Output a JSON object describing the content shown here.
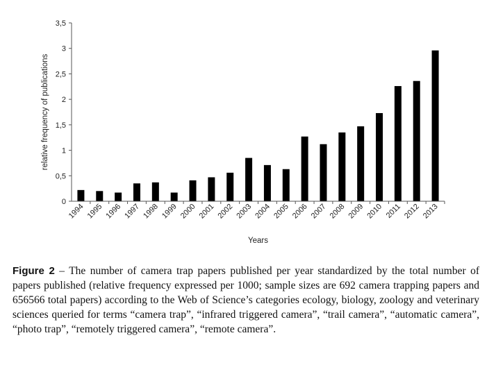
{
  "chart_data": {
    "type": "bar",
    "categories": [
      "1994",
      "1995",
      "1996",
      "1997",
      "1998",
      "1999",
      "2000",
      "2001",
      "2002",
      "2003",
      "2004",
      "2005",
      "2006",
      "2007",
      "2008",
      "2009",
      "2010",
      "2011",
      "2012",
      "2013"
    ],
    "values": [
      0.22,
      0.2,
      0.17,
      0.35,
      0.37,
      0.17,
      0.41,
      0.47,
      0.56,
      0.85,
      0.71,
      0.63,
      1.27,
      1.12,
      1.35,
      1.47,
      1.73,
      2.26,
      2.36,
      2.96
    ],
    "xlabel": "Years",
    "ylabel": "relative frequency of publications",
    "ylim": [
      0,
      3.5
    ],
    "yticks": [
      "0",
      "0,5",
      "1",
      "1,5",
      "2",
      "2,5",
      "3",
      "3,5"
    ],
    "grid": false,
    "bar_color": "#000000"
  },
  "caption": {
    "label": "Figure 2",
    "text": " – The number of camera trap papers published per year standardized by the total number of papers published (relative frequency expressed per 1000; sample sizes are 692 camera trapping papers and 656566 total papers) according to the Web of Science’s categories ecology, biology, zoology and veterinary sciences queried for terms “camera trap”, “infrared triggered camera”, “trail camera”, “automatic camera”, “photo trap”, “remotely triggered camera”, “remote camera”."
  }
}
